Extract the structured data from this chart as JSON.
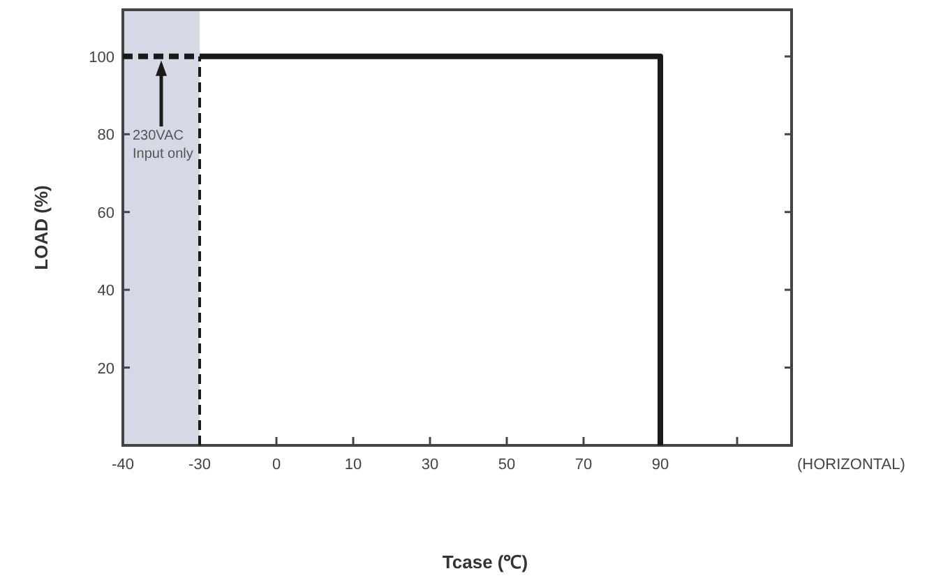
{
  "chart_data": {
    "type": "line",
    "xlabel": "Tcase (℃)",
    "ylabel": "LOAD (%)",
    "categories": [
      "-40",
      "-30",
      "0",
      "10",
      "30",
      "50",
      "70",
      "90",
      null
    ],
    "ylim": [
      0,
      112
    ],
    "yticks": [
      20,
      40,
      60,
      80,
      100
    ],
    "series": [
      {
        "color": "#1a1a1a",
        "x": [
          "-40",
          "-30"
        ],
        "values": [
          100,
          100
        ],
        "line_style": "dashed"
      },
      {
        "color": "#1a1a1a",
        "x": [
          "-30",
          "90",
          "90"
        ],
        "values": [
          100,
          100,
          0
        ],
        "line_style": "solid"
      }
    ],
    "bands": [
      {
        "axis": "x",
        "from": "-40",
        "to": "-30",
        "color": "#d5d9e6"
      }
    ],
    "ref_lines": [
      {
        "axis": "x",
        "value": "-30",
        "line_style": "dashed",
        "color": "#1a1a1a"
      }
    ],
    "annotations": [
      "230VAC Input only",
      "(HORIZONTAL)"
    ],
    "grid": false,
    "marker": "none"
  }
}
